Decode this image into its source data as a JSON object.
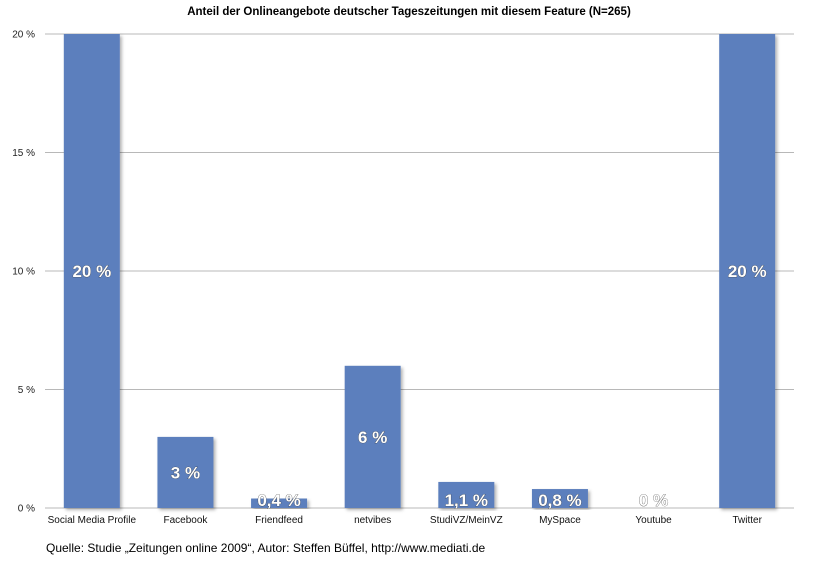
{
  "chart_data": {
    "type": "bar",
    "title": "Anteil der Onlineangebote deutscher Tageszeitungen mit diesem Feature (N=265)",
    "xlabel": "",
    "ylabel": "",
    "categories": [
      "Social Media Profile",
      "Facebook",
      "Friendfeed",
      "netvibes",
      "StudiVZ/MeinVZ",
      "MySpace",
      "Youtube",
      "Twitter"
    ],
    "values": [
      20,
      3,
      0.4,
      6,
      1.1,
      0.8,
      0,
      20
    ],
    "value_labels": [
      "20 %",
      "3 %",
      "0,4 %",
      "6 %",
      "1,1 %",
      "0,8 %",
      "0 %",
      "20 %"
    ],
    "ylim": [
      0,
      20
    ],
    "yticks": [
      0,
      5,
      10,
      15,
      20
    ],
    "ytick_labels": [
      "0 %",
      "5 %",
      "10 %",
      "15 %",
      "20 %"
    ],
    "grid": true,
    "legend": "none",
    "bar_color": "#5b7fbd",
    "grid_color": "#b8b8b8"
  },
  "source": "Quelle: Studie „Zeitungen online 2009“, Autor: Steffen Büffel, http://www.mediati.de"
}
